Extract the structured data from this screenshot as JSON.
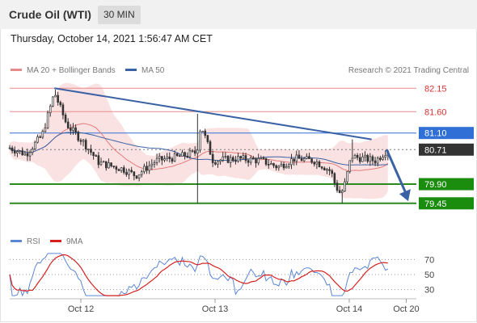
{
  "header": {
    "title": "Crude Oil (WTI)",
    "timeframe": "30 MIN",
    "datetime": "Thursday, October 14, 2021 1:56:47 AM CET"
  },
  "legend": {
    "bollinger": "MA 20 + Bollinger Bands",
    "ma50": "MA 50",
    "credit": "Research © 2021 Trading Central",
    "rsi": "RSI",
    "rsi_ma": "9MA"
  },
  "colors": {
    "resistance": "#e88a8a",
    "pivot": "#2f6fd6",
    "support": "#2a8a1f",
    "support_label": "#1a8c0e",
    "price_label": "#333333",
    "trendline": "#3a62a5",
    "bollinger_fill": "#fbe2e2",
    "ma20": "#e37b7b",
    "ma50": "#3a62a5",
    "candle_up": "#ffffff",
    "candle_down": "#333333",
    "rsi": "#5c86d6",
    "rsi_ma": "#d62020"
  },
  "chart_data": {
    "type": "candlestick",
    "x_ticks": [
      "Oct 12",
      "Oct 13",
      "Oct 14",
      "Oct 20"
    ],
    "y_range": [
      79.2,
      82.42
    ],
    "levels": [
      {
        "value": 82.15,
        "label": "82.15",
        "kind": "resistance"
      },
      {
        "value": 81.6,
        "label": "81.60",
        "kind": "resistance"
      },
      {
        "value": 81.1,
        "label": "81.10",
        "kind": "pivot"
      },
      {
        "value": 80.71,
        "label": "80.71",
        "kind": "price"
      },
      {
        "value": 79.9,
        "label": "79.90",
        "kind": "support"
      },
      {
        "value": 79.45,
        "label": "79.45",
        "kind": "support"
      }
    ],
    "trendline": {
      "from": {
        "t": 0.11,
        "v": 82.15
      },
      "to": {
        "t": 0.89,
        "v": 80.95
      }
    },
    "forecast_arrow": {
      "from": {
        "t": 0.927,
        "v": 80.71
      },
      "to": {
        "t": 0.98,
        "v": 79.5
      }
    },
    "rsi": {
      "y_ticks": [
        "70",
        "50",
        "30"
      ],
      "y_range": [
        20,
        80
      ],
      "levels": [
        70,
        50,
        30
      ]
    }
  }
}
